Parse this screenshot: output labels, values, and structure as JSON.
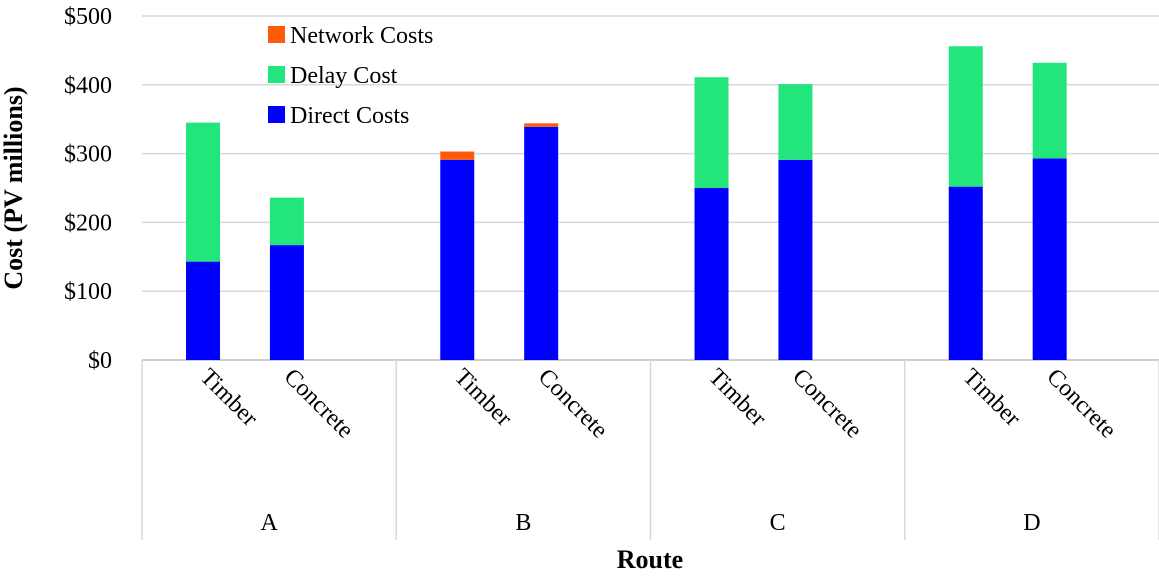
{
  "chart_data": {
    "type": "bar",
    "stacked": true,
    "xlabel": "Route",
    "ylabel": "Cost (PV millions)",
    "ylim": [
      0,
      500
    ],
    "yticks": [
      "$0",
      "$100",
      "$200",
      "$300",
      "$400",
      "$500"
    ],
    "ytick_values": [
      0,
      100,
      200,
      300,
      400,
      500
    ],
    "grid": true,
    "legend_position": "top-left",
    "groups": [
      "A",
      "B",
      "C",
      "D"
    ],
    "categories": [
      "Timber",
      "Concrete",
      "Timber",
      "Concrete",
      "Timber",
      "Concrete",
      "Timber",
      "Concrete"
    ],
    "category_group": [
      0,
      0,
      1,
      1,
      2,
      2,
      3,
      3
    ],
    "series": [
      {
        "name": "Direct Costs",
        "color": "#0000ff",
        "values": [
          143,
          167,
          291,
          339,
          250,
          291,
          252,
          293
        ]
      },
      {
        "name": "Delay Cost",
        "color": "#22e67c",
        "values": [
          202,
          69,
          0,
          0,
          161,
          110,
          204,
          139
        ]
      },
      {
        "name": "Network Costs",
        "color": "#ff5a0a",
        "values": [
          0,
          0,
          12,
          5,
          0,
          0,
          0,
          0
        ]
      }
    ],
    "legend_order": [
      2,
      1,
      0
    ]
  }
}
